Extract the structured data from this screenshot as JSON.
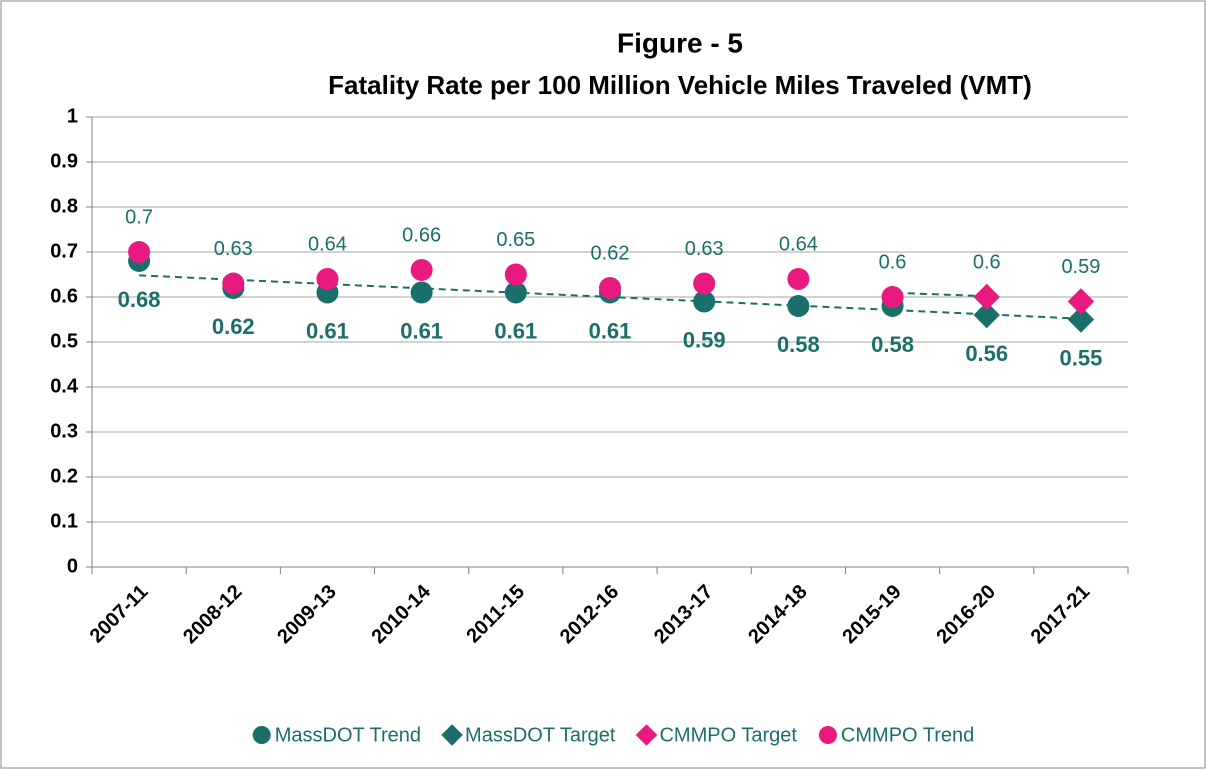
{
  "chart_data": {
    "type": "scatter",
    "title": "Figure - 5",
    "subtitle": "Fatality Rate per 100 Million Vehicle Miles Traveled (VMT)",
    "categories": [
      "2007-11",
      "2008-12",
      "2009-13",
      "2010-14",
      "2011-15",
      "2012-16",
      "2013-17",
      "2014-18",
      "2015-19",
      "2016-20",
      "2017-21"
    ],
    "series": [
      {
        "name": "MassDOT Trend",
        "color": "#1b6f6b",
        "marker": "circle",
        "label_position": "below",
        "values": [
          0.68,
          0.62,
          0.61,
          0.61,
          0.61,
          0.61,
          0.59,
          0.58,
          0.58,
          null,
          null
        ]
      },
      {
        "name": "MassDOT Target",
        "color": "#1b6f6b",
        "marker": "diamond",
        "label_position": "below",
        "values": [
          null,
          null,
          null,
          null,
          null,
          null,
          null,
          null,
          null,
          0.56,
          0.55
        ]
      },
      {
        "name": "CMMPO Target",
        "color": "#e8197f",
        "marker": "diamond",
        "label_position": "above",
        "values": [
          null,
          null,
          null,
          null,
          null,
          null,
          null,
          null,
          null,
          0.6,
          0.59
        ]
      },
      {
        "name": "CMMPO Trend",
        "color": "#e8197f",
        "marker": "circle",
        "label_position": "above",
        "values": [
          0.7,
          0.63,
          0.64,
          0.66,
          0.65,
          0.62,
          0.63,
          0.64,
          0.6,
          null,
          null
        ]
      }
    ],
    "ylim": [
      0,
      1
    ],
    "yticks": [
      0,
      0.1,
      0.2,
      0.3,
      0.4,
      0.5,
      0.6,
      0.7,
      0.8,
      0.9,
      1
    ],
    "grid": true,
    "trendlines": true,
    "legend": "bottom"
  }
}
